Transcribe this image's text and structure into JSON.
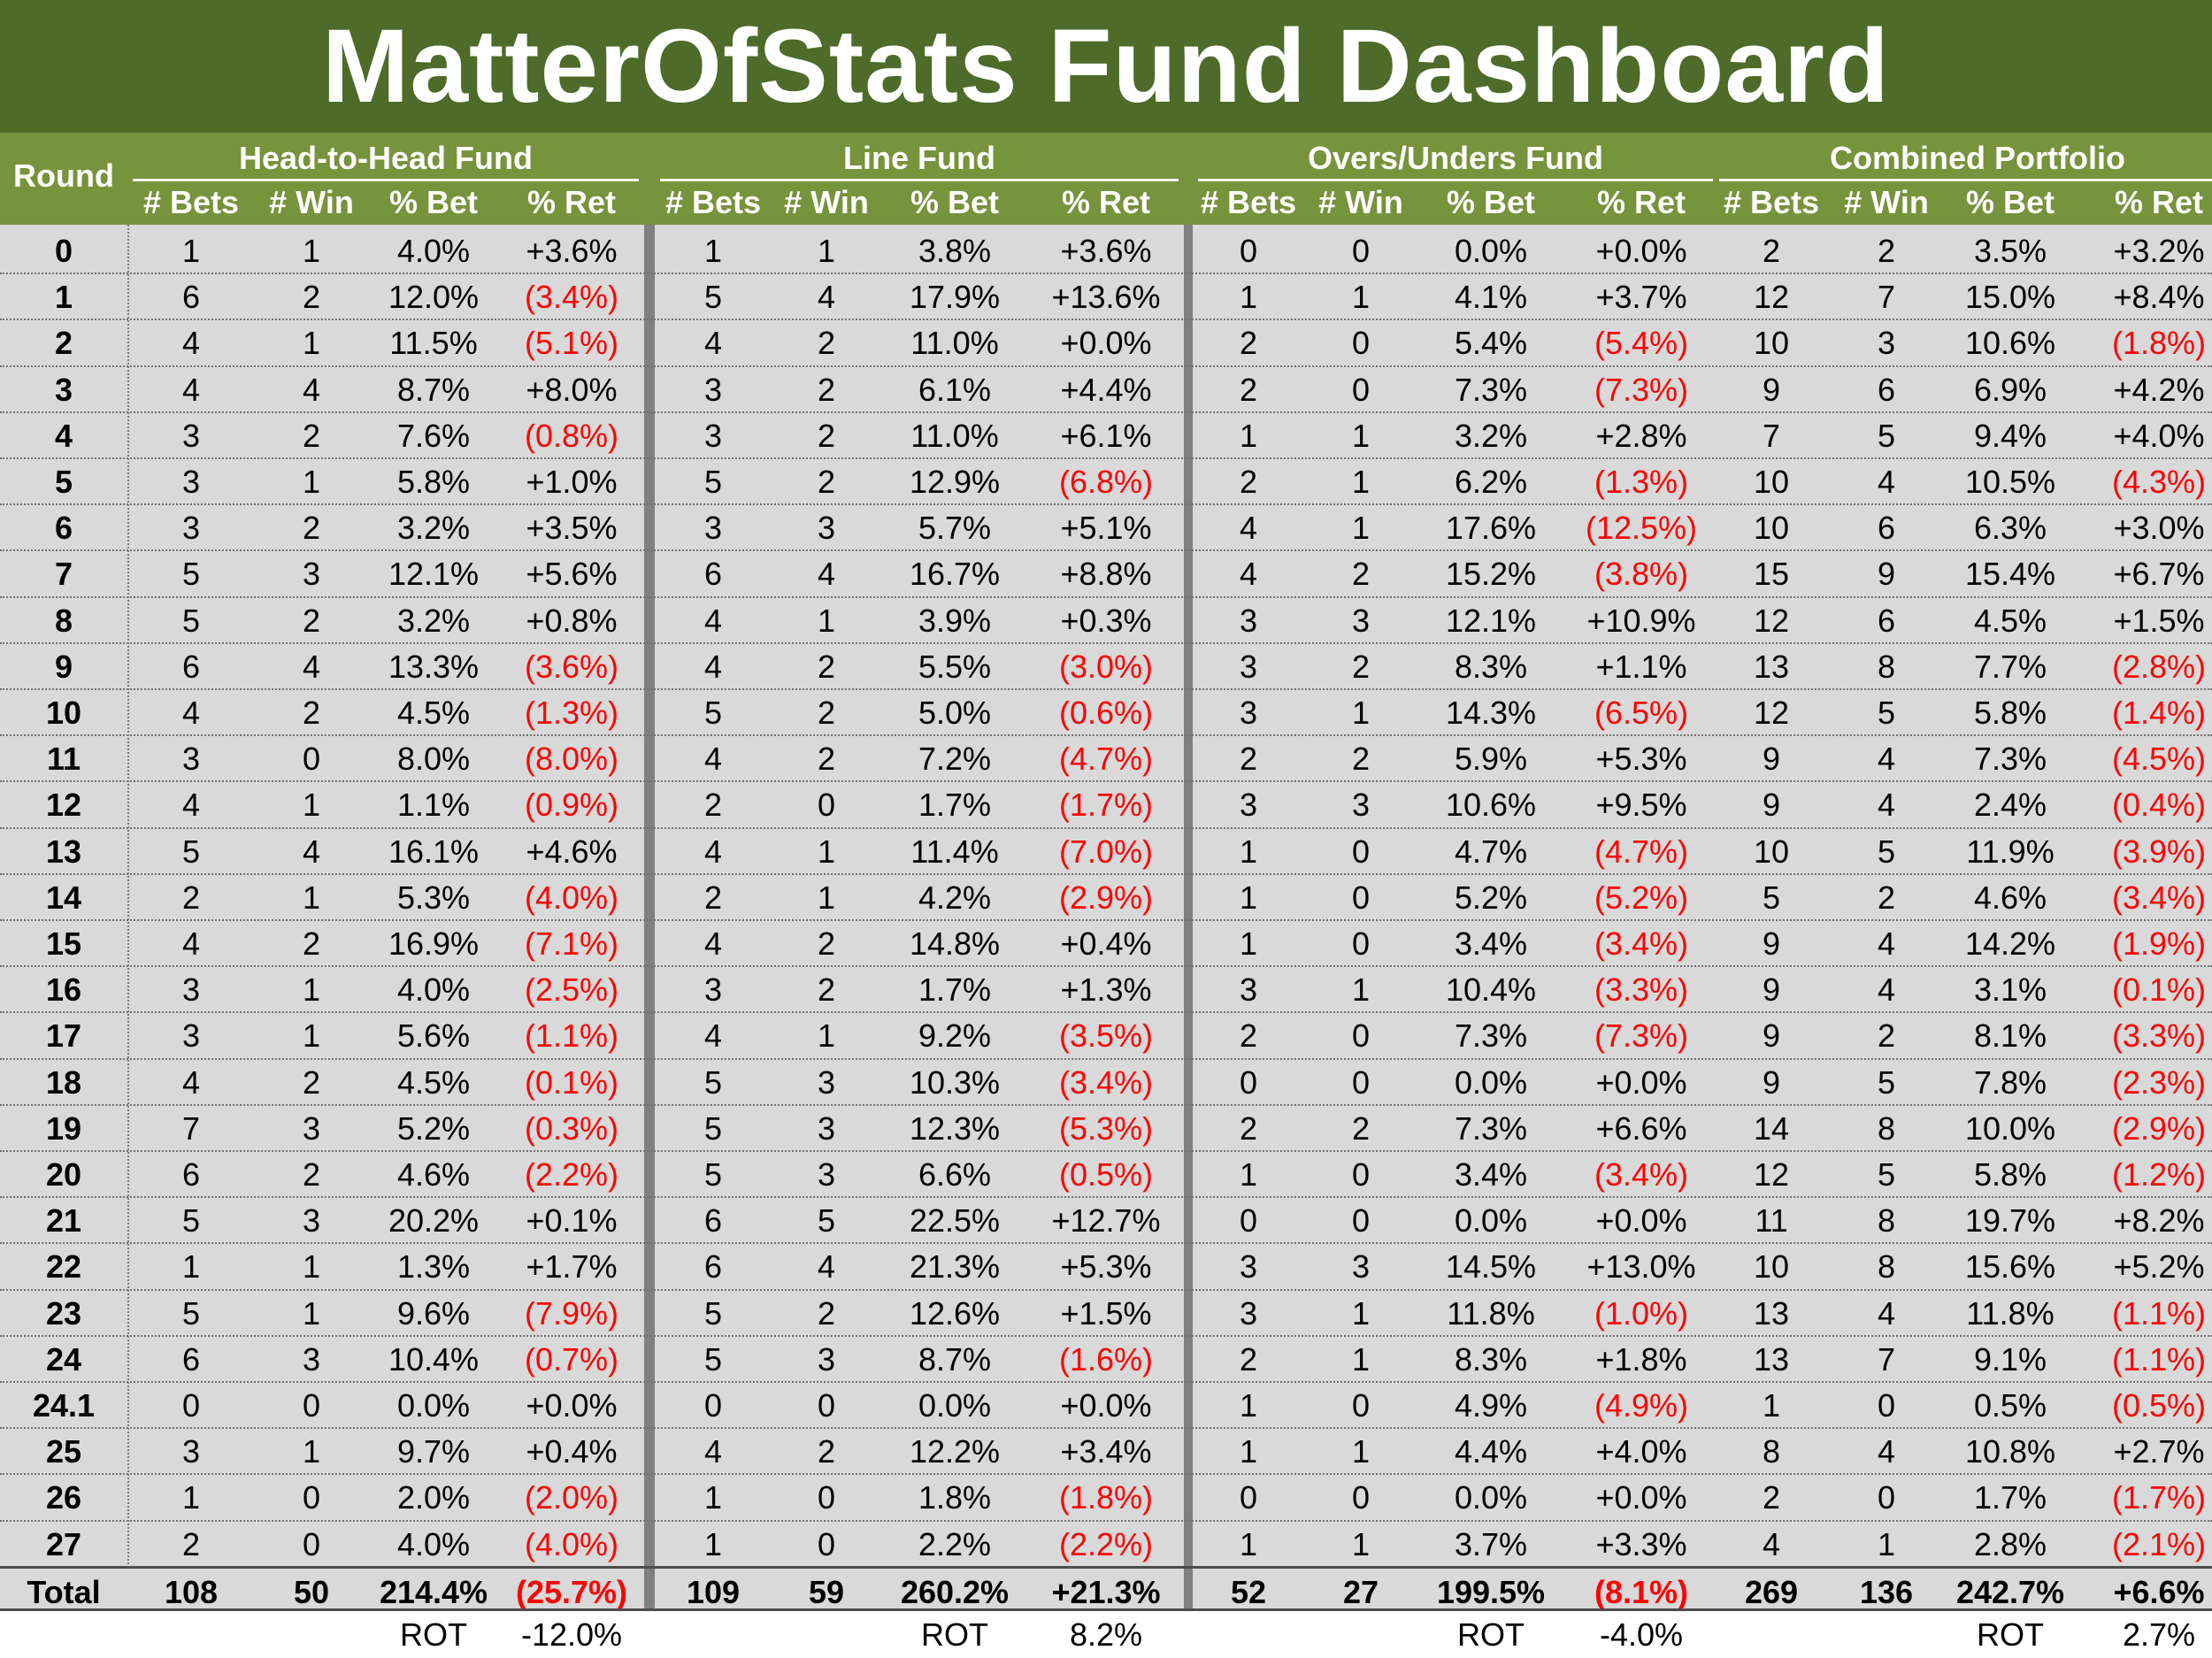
{
  "title": "MatterOfStats Fund Dashboard",
  "header": {
    "round_label": "Round",
    "funds": [
      "Head-to-Head Fund",
      "Line Fund",
      "Overs/Unders Fund",
      "Combined Portfolio"
    ],
    "columns": [
      "# Bets",
      "# Win",
      "% Bet",
      "% Ret"
    ]
  },
  "rows": [
    {
      "round": "0",
      "f": [
        [
          "1",
          "1",
          "4.0%",
          "+3.6%"
        ],
        [
          "1",
          "1",
          "3.8%",
          "+3.6%"
        ],
        [
          "0",
          "0",
          "0.0%",
          "+0.0%"
        ],
        [
          "2",
          "2",
          "3.5%",
          "+3.2%"
        ]
      ]
    },
    {
      "round": "1",
      "f": [
        [
          "6",
          "2",
          "12.0%",
          "(3.4%)"
        ],
        [
          "5",
          "4",
          "17.9%",
          "+13.6%"
        ],
        [
          "1",
          "1",
          "4.1%",
          "+3.7%"
        ],
        [
          "12",
          "7",
          "15.0%",
          "+8.4%"
        ]
      ]
    },
    {
      "round": "2",
      "f": [
        [
          "4",
          "1",
          "11.5%",
          "(5.1%)"
        ],
        [
          "4",
          "2",
          "11.0%",
          "+0.0%"
        ],
        [
          "2",
          "0",
          "5.4%",
          "(5.4%)"
        ],
        [
          "10",
          "3",
          "10.6%",
          "(1.8%)"
        ]
      ]
    },
    {
      "round": "3",
      "f": [
        [
          "4",
          "4",
          "8.7%",
          "+8.0%"
        ],
        [
          "3",
          "2",
          "6.1%",
          "+4.4%"
        ],
        [
          "2",
          "0",
          "7.3%",
          "(7.3%)"
        ],
        [
          "9",
          "6",
          "6.9%",
          "+4.2%"
        ]
      ]
    },
    {
      "round": "4",
      "f": [
        [
          "3",
          "2",
          "7.6%",
          "(0.8%)"
        ],
        [
          "3",
          "2",
          "11.0%",
          "+6.1%"
        ],
        [
          "1",
          "1",
          "3.2%",
          "+2.8%"
        ],
        [
          "7",
          "5",
          "9.4%",
          "+4.0%"
        ]
      ]
    },
    {
      "round": "5",
      "f": [
        [
          "3",
          "1",
          "5.8%",
          "+1.0%"
        ],
        [
          "5",
          "2",
          "12.9%",
          "(6.8%)"
        ],
        [
          "2",
          "1",
          "6.2%",
          "(1.3%)"
        ],
        [
          "10",
          "4",
          "10.5%",
          "(4.3%)"
        ]
      ]
    },
    {
      "round": "6",
      "f": [
        [
          "3",
          "2",
          "3.2%",
          "+3.5%"
        ],
        [
          "3",
          "3",
          "5.7%",
          "+5.1%"
        ],
        [
          "4",
          "1",
          "17.6%",
          "(12.5%)"
        ],
        [
          "10",
          "6",
          "6.3%",
          "+3.0%"
        ]
      ]
    },
    {
      "round": "7",
      "f": [
        [
          "5",
          "3",
          "12.1%",
          "+5.6%"
        ],
        [
          "6",
          "4",
          "16.7%",
          "+8.8%"
        ],
        [
          "4",
          "2",
          "15.2%",
          "(3.8%)"
        ],
        [
          "15",
          "9",
          "15.4%",
          "+6.7%"
        ]
      ]
    },
    {
      "round": "8",
      "f": [
        [
          "5",
          "2",
          "3.2%",
          "+0.8%"
        ],
        [
          "4",
          "1",
          "3.9%",
          "+0.3%"
        ],
        [
          "3",
          "3",
          "12.1%",
          "+10.9%"
        ],
        [
          "12",
          "6",
          "4.5%",
          "+1.5%"
        ]
      ]
    },
    {
      "round": "9",
      "f": [
        [
          "6",
          "4",
          "13.3%",
          "(3.6%)"
        ],
        [
          "4",
          "2",
          "5.5%",
          "(3.0%)"
        ],
        [
          "3",
          "2",
          "8.3%",
          "+1.1%"
        ],
        [
          "13",
          "8",
          "7.7%",
          "(2.8%)"
        ]
      ]
    },
    {
      "round": "10",
      "f": [
        [
          "4",
          "2",
          "4.5%",
          "(1.3%)"
        ],
        [
          "5",
          "2",
          "5.0%",
          "(0.6%)"
        ],
        [
          "3",
          "1",
          "14.3%",
          "(6.5%)"
        ],
        [
          "12",
          "5",
          "5.8%",
          "(1.4%)"
        ]
      ]
    },
    {
      "round": "11",
      "f": [
        [
          "3",
          "0",
          "8.0%",
          "(8.0%)"
        ],
        [
          "4",
          "2",
          "7.2%",
          "(4.7%)"
        ],
        [
          "2",
          "2",
          "5.9%",
          "+5.3%"
        ],
        [
          "9",
          "4",
          "7.3%",
          "(4.5%)"
        ]
      ]
    },
    {
      "round": "12",
      "f": [
        [
          "4",
          "1",
          "1.1%",
          "(0.9%)"
        ],
        [
          "2",
          "0",
          "1.7%",
          "(1.7%)"
        ],
        [
          "3",
          "3",
          "10.6%",
          "+9.5%"
        ],
        [
          "9",
          "4",
          "2.4%",
          "(0.4%)"
        ]
      ]
    },
    {
      "round": "13",
      "f": [
        [
          "5",
          "4",
          "16.1%",
          "+4.6%"
        ],
        [
          "4",
          "1",
          "11.4%",
          "(7.0%)"
        ],
        [
          "1",
          "0",
          "4.7%",
          "(4.7%)"
        ],
        [
          "10",
          "5",
          "11.9%",
          "(3.9%)"
        ]
      ]
    },
    {
      "round": "14",
      "f": [
        [
          "2",
          "1",
          "5.3%",
          "(4.0%)"
        ],
        [
          "2",
          "1",
          "4.2%",
          "(2.9%)"
        ],
        [
          "1",
          "0",
          "5.2%",
          "(5.2%)"
        ],
        [
          "5",
          "2",
          "4.6%",
          "(3.4%)"
        ]
      ]
    },
    {
      "round": "15",
      "f": [
        [
          "4",
          "2",
          "16.9%",
          "(7.1%)"
        ],
        [
          "4",
          "2",
          "14.8%",
          "+0.4%"
        ],
        [
          "1",
          "0",
          "3.4%",
          "(3.4%)"
        ],
        [
          "9",
          "4",
          "14.2%",
          "(1.9%)"
        ]
      ]
    },
    {
      "round": "16",
      "f": [
        [
          "3",
          "1",
          "4.0%",
          "(2.5%)"
        ],
        [
          "3",
          "2",
          "1.7%",
          "+1.3%"
        ],
        [
          "3",
          "1",
          "10.4%",
          "(3.3%)"
        ],
        [
          "9",
          "4",
          "3.1%",
          "(0.1%)"
        ]
      ]
    },
    {
      "round": "17",
      "f": [
        [
          "3",
          "1",
          "5.6%",
          "(1.1%)"
        ],
        [
          "4",
          "1",
          "9.2%",
          "(3.5%)"
        ],
        [
          "2",
          "0",
          "7.3%",
          "(7.3%)"
        ],
        [
          "9",
          "2",
          "8.1%",
          "(3.3%)"
        ]
      ]
    },
    {
      "round": "18",
      "f": [
        [
          "4",
          "2",
          "4.5%",
          "(0.1%)"
        ],
        [
          "5",
          "3",
          "10.3%",
          "(3.4%)"
        ],
        [
          "0",
          "0",
          "0.0%",
          "+0.0%"
        ],
        [
          "9",
          "5",
          "7.8%",
          "(2.3%)"
        ]
      ]
    },
    {
      "round": "19",
      "f": [
        [
          "7",
          "3",
          "5.2%",
          "(0.3%)"
        ],
        [
          "5",
          "3",
          "12.3%",
          "(5.3%)"
        ],
        [
          "2",
          "2",
          "7.3%",
          "+6.6%"
        ],
        [
          "14",
          "8",
          "10.0%",
          "(2.9%)"
        ]
      ]
    },
    {
      "round": "20",
      "f": [
        [
          "6",
          "2",
          "4.6%",
          "(2.2%)"
        ],
        [
          "5",
          "3",
          "6.6%",
          "(0.5%)"
        ],
        [
          "1",
          "0",
          "3.4%",
          "(3.4%)"
        ],
        [
          "12",
          "5",
          "5.8%",
          "(1.2%)"
        ]
      ]
    },
    {
      "round": "21",
      "f": [
        [
          "5",
          "3",
          "20.2%",
          "+0.1%"
        ],
        [
          "6",
          "5",
          "22.5%",
          "+12.7%"
        ],
        [
          "0",
          "0",
          "0.0%",
          "+0.0%"
        ],
        [
          "11",
          "8",
          "19.7%",
          "+8.2%"
        ]
      ]
    },
    {
      "round": "22",
      "f": [
        [
          "1",
          "1",
          "1.3%",
          "+1.7%"
        ],
        [
          "6",
          "4",
          "21.3%",
          "+5.3%"
        ],
        [
          "3",
          "3",
          "14.5%",
          "+13.0%"
        ],
        [
          "10",
          "8",
          "15.6%",
          "+5.2%"
        ]
      ]
    },
    {
      "round": "23",
      "f": [
        [
          "5",
          "1",
          "9.6%",
          "(7.9%)"
        ],
        [
          "5",
          "2",
          "12.6%",
          "+1.5%"
        ],
        [
          "3",
          "1",
          "11.8%",
          "(1.0%)"
        ],
        [
          "13",
          "4",
          "11.8%",
          "(1.1%)"
        ]
      ]
    },
    {
      "round": "24",
      "f": [
        [
          "6",
          "3",
          "10.4%",
          "(0.7%)"
        ],
        [
          "5",
          "3",
          "8.7%",
          "(1.6%)"
        ],
        [
          "2",
          "1",
          "8.3%",
          "+1.8%"
        ],
        [
          "13",
          "7",
          "9.1%",
          "(1.1%)"
        ]
      ]
    },
    {
      "round": "24.1",
      "f": [
        [
          "0",
          "0",
          "0.0%",
          "+0.0%"
        ],
        [
          "0",
          "0",
          "0.0%",
          "+0.0%"
        ],
        [
          "1",
          "0",
          "4.9%",
          "(4.9%)"
        ],
        [
          "1",
          "0",
          "0.5%",
          "(0.5%)"
        ]
      ]
    },
    {
      "round": "25",
      "f": [
        [
          "3",
          "1",
          "9.7%",
          "+0.4%"
        ],
        [
          "4",
          "2",
          "12.2%",
          "+3.4%"
        ],
        [
          "1",
          "1",
          "4.4%",
          "+4.0%"
        ],
        [
          "8",
          "4",
          "10.8%",
          "+2.7%"
        ]
      ]
    },
    {
      "round": "26",
      "f": [
        [
          "1",
          "0",
          "2.0%",
          "(2.0%)"
        ],
        [
          "1",
          "0",
          "1.8%",
          "(1.8%)"
        ],
        [
          "0",
          "0",
          "0.0%",
          "+0.0%"
        ],
        [
          "2",
          "0",
          "1.7%",
          "(1.7%)"
        ]
      ]
    },
    {
      "round": "27",
      "f": [
        [
          "2",
          "0",
          "4.0%",
          "(4.0%)"
        ],
        [
          "1",
          "0",
          "2.2%",
          "(2.2%)"
        ],
        [
          "1",
          "1",
          "3.7%",
          "+3.3%"
        ],
        [
          "4",
          "1",
          "2.8%",
          "(2.1%)"
        ]
      ]
    }
  ],
  "total": {
    "round": "Total",
    "f": [
      [
        "108",
        "50",
        "214.4%",
        "(25.7%)"
      ],
      [
        "109",
        "59",
        "260.2%",
        "+21.3%"
      ],
      [
        "52",
        "27",
        "199.5%",
        "(8.1%)"
      ],
      [
        "269",
        "136",
        "242.7%",
        "+6.6%"
      ]
    ]
  },
  "rot": {
    "label": "ROT",
    "values": [
      "-12.0%",
      "8.2%",
      "-4.0%",
      "2.7%"
    ]
  },
  "colors": {
    "title_bg": "#4e6b2a",
    "header_bg": "#77933c",
    "body_bg": "#d9d9d9",
    "separator": "#808080",
    "negative": "#ff0000"
  }
}
